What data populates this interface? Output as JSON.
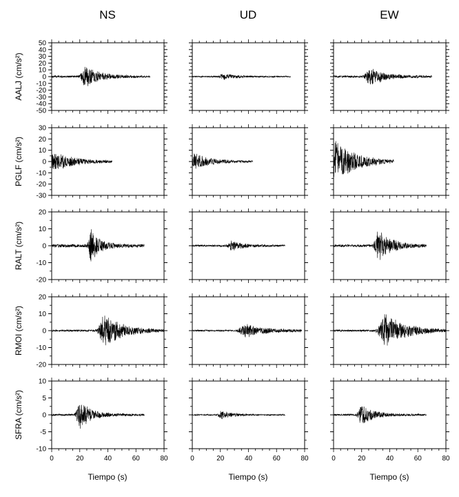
{
  "chart_data": {
    "type": "line",
    "columns": [
      "NS",
      "UD",
      "EW"
    ],
    "xlabel": "Tiempo (s)",
    "xlim": [
      0,
      80
    ],
    "xticks": [
      0,
      20,
      40,
      60,
      80
    ],
    "rows": [
      {
        "station": "AALJ",
        "unit": "(cm/s²)",
        "ylim": [
          -50,
          50
        ],
        "yticks": [
          -50,
          -40,
          -30,
          -20,
          -10,
          0,
          10,
          20,
          30,
          40,
          50
        ],
        "traces": [
          {
            "component": "NS",
            "end": 70,
            "noise": 1.5,
            "bursts": [
              {
                "t": 24,
                "w": 6,
                "amp": 17
              }
            ]
          },
          {
            "component": "UD",
            "end": 70,
            "noise": 1.0,
            "bursts": [
              {
                "t": 22,
                "w": 5,
                "amp": 5
              }
            ]
          },
          {
            "component": "EW",
            "end": 70,
            "noise": 1.5,
            "bursts": [
              {
                "t": 26,
                "w": 7,
                "amp": 13
              }
            ]
          }
        ]
      },
      {
        "station": "PGLF",
        "unit": "(cm/s²)",
        "ylim": [
          -30,
          30
        ],
        "yticks": [
          -30,
          -20,
          -10,
          0,
          10,
          20,
          30
        ],
        "traces": [
          {
            "component": "NS",
            "end": 43,
            "noise": 0.8,
            "bursts": [
              {
                "t": 3,
                "w": 9,
                "amp": 8
              }
            ]
          },
          {
            "component": "UD",
            "end": 43,
            "noise": 0.6,
            "bursts": [
              {
                "t": 2,
                "w": 8,
                "amp": 7
              }
            ]
          },
          {
            "component": "EW",
            "end": 43,
            "noise": 1.0,
            "bursts": [
              {
                "t": 2,
                "w": 9,
                "amp": 18
              }
            ]
          }
        ]
      },
      {
        "station": "RALT",
        "unit": "(cm/s²)",
        "ylim": [
          -20,
          20
        ],
        "yticks": [
          -20,
          -10,
          0,
          10,
          20
        ],
        "traces": [
          {
            "component": "NS",
            "end": 66,
            "noise": 1.0,
            "bursts": [
              {
                "t": 28,
                "w": 4,
                "amp": 10
              }
            ]
          },
          {
            "component": "UD",
            "end": 66,
            "noise": 0.6,
            "bursts": [
              {
                "t": 28,
                "w": 5,
                "amp": 3
              }
            ]
          },
          {
            "component": "EW",
            "end": 66,
            "noise": 0.8,
            "bursts": [
              {
                "t": 32,
                "w": 6,
                "amp": 9
              }
            ]
          }
        ]
      },
      {
        "station": "RMOI",
        "unit": "(cm/s²)",
        "ylim": [
          -20,
          20
        ],
        "yticks": [
          -20,
          -10,
          0,
          10,
          20
        ],
        "traces": [
          {
            "component": "NS",
            "end": 80,
            "noise": 0.6,
            "bursts": [
              {
                "t": 38,
                "w": 8,
                "amp": 10
              }
            ]
          },
          {
            "component": "UD",
            "end": 78,
            "noise": 0.5,
            "bursts": [
              {
                "t": 38,
                "w": 9,
                "amp": 4
              }
            ]
          },
          {
            "component": "EW",
            "end": 80,
            "noise": 0.6,
            "bursts": [
              {
                "t": 37,
                "w": 9,
                "amp": 10
              }
            ]
          }
        ]
      },
      {
        "station": "SFRA",
        "unit": "(cm/s²)",
        "ylim": [
          -10,
          10
        ],
        "yticks": [
          -10,
          -5,
          0,
          5,
          10
        ],
        "traces": [
          {
            "component": "NS",
            "end": 66,
            "noise": 0.3,
            "bursts": [
              {
                "t": 20,
                "w": 5,
                "amp": 4.5
              }
            ]
          },
          {
            "component": "UD",
            "end": 66,
            "noise": 0.2,
            "bursts": [
              {
                "t": 21,
                "w": 5,
                "amp": 1.2
              }
            ]
          },
          {
            "component": "EW",
            "end": 66,
            "noise": 0.3,
            "bursts": [
              {
                "t": 20,
                "w": 5,
                "amp": 3.2
              }
            ]
          }
        ]
      }
    ]
  }
}
